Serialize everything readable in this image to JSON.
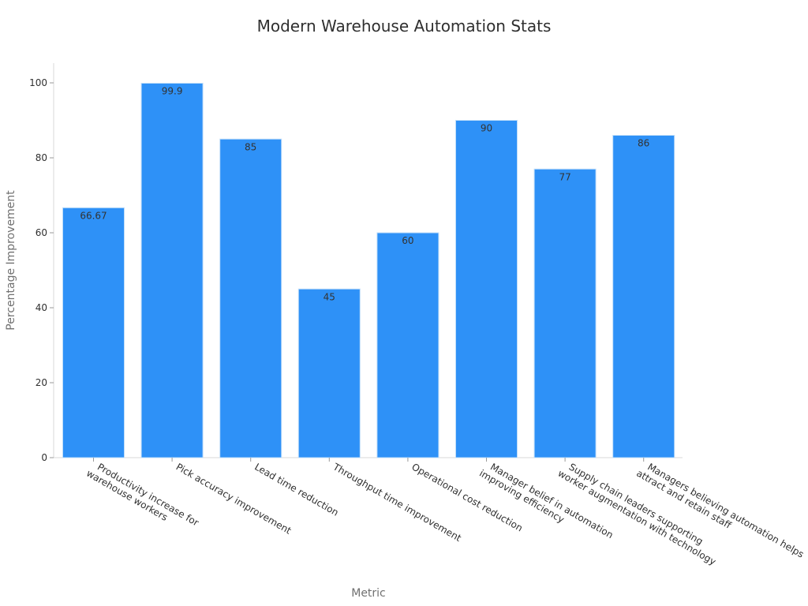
{
  "chart_data": {
    "type": "bar",
    "title": "Modern Warehouse Automation Stats",
    "xlabel": "Metric",
    "ylabel": "Percentage Improvement",
    "ylim": [
      0,
      105
    ],
    "yticks": [
      0,
      20,
      40,
      60,
      80,
      100
    ],
    "grid": false,
    "bar_color": "#2E91F7",
    "bar_edge_color": "#BFDDF9",
    "categories": [
      [
        "Productivity increase for",
        "warehouse workers"
      ],
      [
        "Pick accuracy improvement"
      ],
      [
        "Lead time reduction"
      ],
      [
        "Throughput time improvement"
      ],
      [
        "Operational cost reduction"
      ],
      [
        "Manager belief in automation",
        "improving efficiency"
      ],
      [
        "Supply chain leaders supporting",
        "worker augmentation with technology"
      ],
      [
        "Managers believing automation helps",
        "attract and retain staff"
      ]
    ],
    "values": [
      66.67,
      99.9,
      85,
      45,
      60,
      90,
      77,
      86
    ],
    "value_labels": [
      "66.67",
      "99.9",
      "85",
      "45",
      "60",
      "90",
      "77",
      "86"
    ]
  }
}
